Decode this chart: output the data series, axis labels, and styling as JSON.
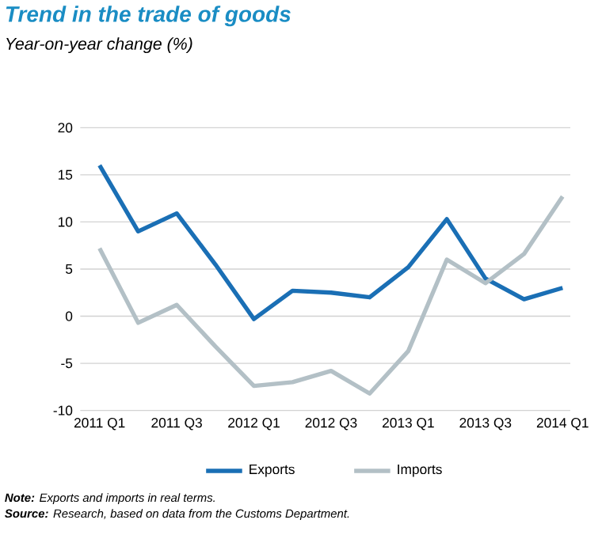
{
  "chart_data": {
    "type": "line",
    "title": "Trend in the trade of goods",
    "subtitle": "Year-on-year change (%)",
    "categories": [
      "2011 Q1",
      null,
      "2011 Q3",
      null,
      "2012 Q1",
      null,
      "2012 Q3",
      null,
      "2013 Q1",
      null,
      "2013 Q3",
      null,
      "2014 Q1"
    ],
    "series": [
      {
        "name": "Exports",
        "color": "#1a6fb5",
        "values": [
          16.0,
          9.0,
          10.9,
          5.5,
          -0.3,
          2.7,
          2.5,
          2.0,
          5.2,
          10.3,
          4.0,
          1.8,
          3.0
        ]
      },
      {
        "name": "Imports",
        "color": "#b3c0c6",
        "values": [
          7.2,
          -0.7,
          1.2,
          -3.2,
          -7.4,
          -7.0,
          -5.8,
          -8.2,
          -3.7,
          6.0,
          3.5,
          6.6,
          12.7
        ]
      }
    ],
    "ylim": [
      -10,
      20
    ],
    "yticks": [
      -10,
      -5,
      0,
      5,
      10,
      15,
      20
    ],
    "grid": "y",
    "legend": "bottom",
    "line_style": "solid",
    "marker": "none",
    "annotations": [
      "**Note:** Exports and imports in real terms.",
      "**Source:** Research, based on data from the Customs Department."
    ]
  }
}
